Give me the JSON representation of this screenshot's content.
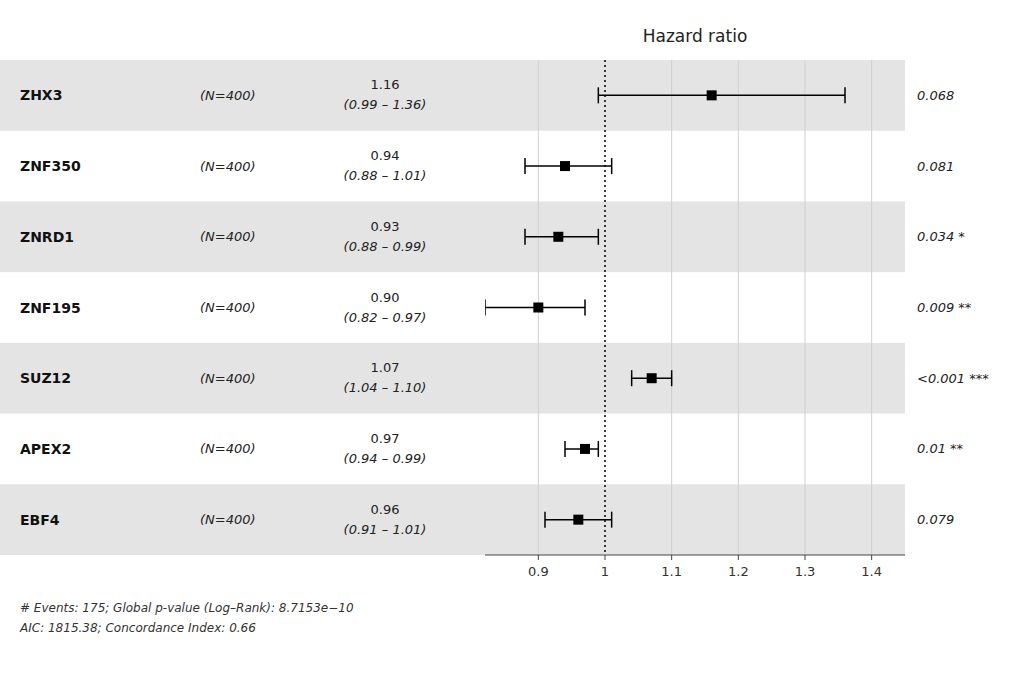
{
  "chart_data": {
    "type": "forest",
    "title": "Hazard ratio",
    "categories": [
      "ZHX3",
      "ZNF350",
      "ZNRD1",
      "ZNF195",
      "SUZ12",
      "APEX2",
      "EBF4"
    ],
    "n_labels": [
      "(N=400)",
      "(N=400)",
      "(N=400)",
      "(N=400)",
      "(N=400)",
      "(N=400)",
      "(N=400)"
    ],
    "values": [
      1.16,
      0.94,
      0.93,
      0.9,
      1.07,
      0.97,
      0.96
    ],
    "value_labels": [
      "1.16",
      "0.94",
      "0.93",
      "0.90",
      "1.07",
      "0.97",
      "0.96"
    ],
    "ci_low": [
      0.99,
      0.88,
      0.88,
      0.82,
      1.04,
      0.94,
      0.91
    ],
    "ci_high": [
      1.36,
      1.01,
      0.99,
      0.97,
      1.1,
      0.99,
      1.01
    ],
    "ci_labels": [
      "(0.99 – 1.36)",
      "(0.88 – 1.01)",
      "(0.88 – 0.99)",
      "(0.82 – 0.97)",
      "(1.04 – 1.10)",
      "(0.94 – 0.99)",
      "(0.91 – 1.01)"
    ],
    "p_labels": [
      "0.068",
      "0.081",
      "0.034 *",
      "0.009 **",
      "<0.001 ***",
      "0.01 **",
      "0.079"
    ],
    "color": "#000000",
    "xlim": [
      0.82,
      1.45
    ],
    "xticks": [
      0.9,
      1,
      1.1,
      1.2,
      1.3,
      1.4
    ],
    "reference_line": 1,
    "grid": true,
    "data_labels": true,
    "footnotes": [
      "# Events: 175; Global p-value (Log–Rank): 8.7153e−10",
      "AIC: 1815.38; Concordance Index: 0.66"
    ]
  }
}
